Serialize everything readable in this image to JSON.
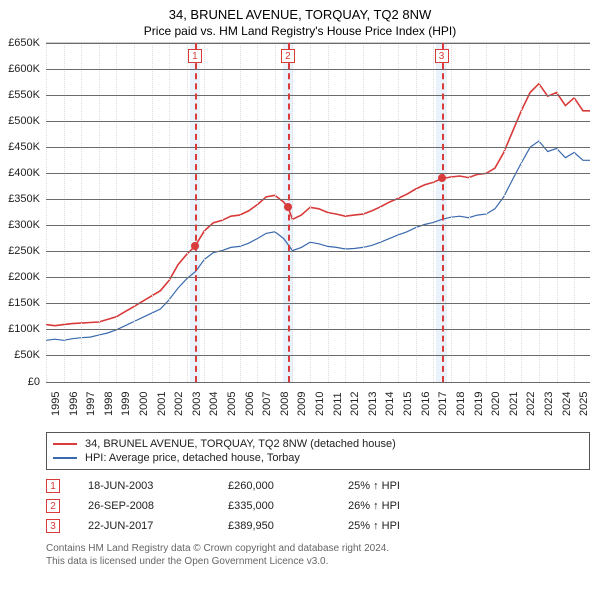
{
  "header": {
    "title": "34, BRUNEL AVENUE, TORQUAY, TQ2 8NW",
    "subtitle": "Price paid vs. HM Land Registry's House Price Index (HPI)"
  },
  "chart": {
    "type": "line",
    "xlim": [
      1995,
      2025.9
    ],
    "ylim": [
      0,
      650000
    ],
    "ytick_step": 50000,
    "yticks": [
      {
        "v": 0,
        "label": "£0"
      },
      {
        "v": 50000,
        "label": "£50K"
      },
      {
        "v": 100000,
        "label": "£100K"
      },
      {
        "v": 150000,
        "label": "£150K"
      },
      {
        "v": 200000,
        "label": "£200K"
      },
      {
        "v": 250000,
        "label": "£250K"
      },
      {
        "v": 300000,
        "label": "£300K"
      },
      {
        "v": 350000,
        "label": "£350K"
      },
      {
        "v": 400000,
        "label": "£400K"
      },
      {
        "v": 450000,
        "label": "£450K"
      },
      {
        "v": 500000,
        "label": "£500K"
      },
      {
        "v": 550000,
        "label": "£550K"
      },
      {
        "v": 600000,
        "label": "£600K"
      },
      {
        "v": 650000,
        "label": "£650K"
      }
    ],
    "xticks": [
      1995,
      1996,
      1997,
      1998,
      1999,
      2000,
      2001,
      2002,
      2003,
      2004,
      2005,
      2006,
      2007,
      2008,
      2009,
      2010,
      2011,
      2012,
      2013,
      2014,
      2015,
      2016,
      2017,
      2018,
      2019,
      2020,
      2021,
      2022,
      2023,
      2024,
      2025
    ],
    "background_color": "#ffffff",
    "grid_color_h": "#6b6b6b",
    "grid_color_v": "#dcdcdc",
    "band_color": "#eaf2fb",
    "band_width_years": 0.6,
    "dash_color": "#d93a3a",
    "title_fontsize": 13,
    "label_fontsize": 11,
    "line_width_red": 1.6,
    "line_width_blue": 1.2,
    "series": {
      "property": {
        "label": "34, BRUNEL AVENUE, TORQUAY, TQ2 8NW (detached house)",
        "color": "#d93a3a",
        "points": [
          [
            1995.0,
            110000
          ],
          [
            1995.5,
            108000
          ],
          [
            1996.0,
            110000
          ],
          [
            1996.5,
            112000
          ],
          [
            1997.0,
            113000
          ],
          [
            1997.5,
            114000
          ],
          [
            1998.0,
            115000
          ],
          [
            1998.5,
            120000
          ],
          [
            1999.0,
            125000
          ],
          [
            1999.5,
            135000
          ],
          [
            2000.0,
            145000
          ],
          [
            2000.5,
            155000
          ],
          [
            2001.0,
            165000
          ],
          [
            2001.5,
            175000
          ],
          [
            2002.0,
            195000
          ],
          [
            2002.5,
            225000
          ],
          [
            2003.0,
            245000
          ],
          [
            2003.46,
            260000
          ],
          [
            2004.0,
            290000
          ],
          [
            2004.5,
            305000
          ],
          [
            2005.0,
            310000
          ],
          [
            2005.5,
            318000
          ],
          [
            2006.0,
            320000
          ],
          [
            2006.5,
            328000
          ],
          [
            2007.0,
            340000
          ],
          [
            2007.5,
            355000
          ],
          [
            2008.0,
            358000
          ],
          [
            2008.5,
            345000
          ],
          [
            2008.74,
            335000
          ],
          [
            2009.0,
            312000
          ],
          [
            2009.5,
            320000
          ],
          [
            2010.0,
            335000
          ],
          [
            2010.5,
            332000
          ],
          [
            2011.0,
            325000
          ],
          [
            2011.5,
            322000
          ],
          [
            2012.0,
            318000
          ],
          [
            2012.5,
            320000
          ],
          [
            2013.0,
            322000
          ],
          [
            2013.5,
            328000
          ],
          [
            2014.0,
            336000
          ],
          [
            2014.5,
            345000
          ],
          [
            2015.0,
            352000
          ],
          [
            2015.5,
            360000
          ],
          [
            2016.0,
            370000
          ],
          [
            2016.5,
            378000
          ],
          [
            2017.0,
            383000
          ],
          [
            2017.47,
            389950
          ],
          [
            2018.0,
            393000
          ],
          [
            2018.5,
            395000
          ],
          [
            2019.0,
            392000
          ],
          [
            2019.5,
            398000
          ],
          [
            2020.0,
            400000
          ],
          [
            2020.5,
            410000
          ],
          [
            2021.0,
            440000
          ],
          [
            2021.5,
            480000
          ],
          [
            2022.0,
            520000
          ],
          [
            2022.5,
            555000
          ],
          [
            2023.0,
            572000
          ],
          [
            2023.5,
            548000
          ],
          [
            2024.0,
            555000
          ],
          [
            2024.5,
            530000
          ],
          [
            2025.0,
            545000
          ],
          [
            2025.5,
            520000
          ],
          [
            2025.9,
            520000
          ]
        ]
      },
      "hpi": {
        "label": "HPI: Average price, detached house, Torbay",
        "color": "#3a6aaE",
        "points": [
          [
            1995.0,
            80000
          ],
          [
            1995.5,
            82000
          ],
          [
            1996.0,
            80000
          ],
          [
            1996.5,
            83000
          ],
          [
            1997.0,
            85000
          ],
          [
            1997.5,
            86000
          ],
          [
            1998.0,
            90000
          ],
          [
            1998.5,
            94000
          ],
          [
            1999.0,
            100000
          ],
          [
            1999.5,
            108000
          ],
          [
            2000.0,
            116000
          ],
          [
            2000.5,
            124000
          ],
          [
            2001.0,
            132000
          ],
          [
            2001.5,
            140000
          ],
          [
            2002.0,
            158000
          ],
          [
            2002.5,
            180000
          ],
          [
            2003.0,
            198000
          ],
          [
            2003.5,
            212000
          ],
          [
            2004.0,
            235000
          ],
          [
            2004.5,
            248000
          ],
          [
            2005.0,
            252000
          ],
          [
            2005.5,
            258000
          ],
          [
            2006.0,
            260000
          ],
          [
            2006.5,
            266000
          ],
          [
            2007.0,
            275000
          ],
          [
            2007.5,
            285000
          ],
          [
            2008.0,
            288000
          ],
          [
            2008.5,
            275000
          ],
          [
            2009.0,
            252000
          ],
          [
            2009.5,
            258000
          ],
          [
            2010.0,
            268000
          ],
          [
            2010.5,
            265000
          ],
          [
            2011.0,
            260000
          ],
          [
            2011.5,
            258000
          ],
          [
            2012.0,
            255000
          ],
          [
            2012.5,
            256000
          ],
          [
            2013.0,
            258000
          ],
          [
            2013.5,
            262000
          ],
          [
            2014.0,
            268000
          ],
          [
            2014.5,
            275000
          ],
          [
            2015.0,
            282000
          ],
          [
            2015.5,
            288000
          ],
          [
            2016.0,
            296000
          ],
          [
            2016.5,
            302000
          ],
          [
            2017.0,
            306000
          ],
          [
            2017.5,
            312000
          ],
          [
            2018.0,
            316000
          ],
          [
            2018.5,
            318000
          ],
          [
            2019.0,
            315000
          ],
          [
            2019.5,
            320000
          ],
          [
            2020.0,
            322000
          ],
          [
            2020.5,
            332000
          ],
          [
            2021.0,
            355000
          ],
          [
            2021.5,
            388000
          ],
          [
            2022.0,
            420000
          ],
          [
            2022.5,
            450000
          ],
          [
            2023.0,
            462000
          ],
          [
            2023.5,
            442000
          ],
          [
            2024.0,
            448000
          ],
          [
            2024.5,
            430000
          ],
          [
            2025.0,
            440000
          ],
          [
            2025.5,
            425000
          ],
          [
            2025.9,
            425000
          ]
        ]
      }
    },
    "transactions": [
      {
        "n": "1",
        "date": "18-JUN-2003",
        "x": 2003.46,
        "price_val": 260000,
        "price": "£260,000",
        "pct": "25% ↑ HPI"
      },
      {
        "n": "2",
        "date": "26-SEP-2008",
        "x": 2008.74,
        "price_val": 335000,
        "price": "£335,000",
        "pct": "26% ↑ HPI"
      },
      {
        "n": "3",
        "date": "22-JUN-2017",
        "x": 2017.47,
        "price_val": 389950,
        "price": "£389,950",
        "pct": "25% ↑ HPI"
      }
    ]
  },
  "legend": {
    "rows": [
      {
        "color": "#d93a3a",
        "text_path": "chart.series.property.label"
      },
      {
        "color": "#3a6aaE",
        "text_path": "chart.series.hpi.label"
      }
    ]
  },
  "footer": {
    "line1": "Contains HM Land Registry data © Crown copyright and database right 2024.",
    "line2": "This data is licensed under the Open Government Licence v3.0."
  }
}
